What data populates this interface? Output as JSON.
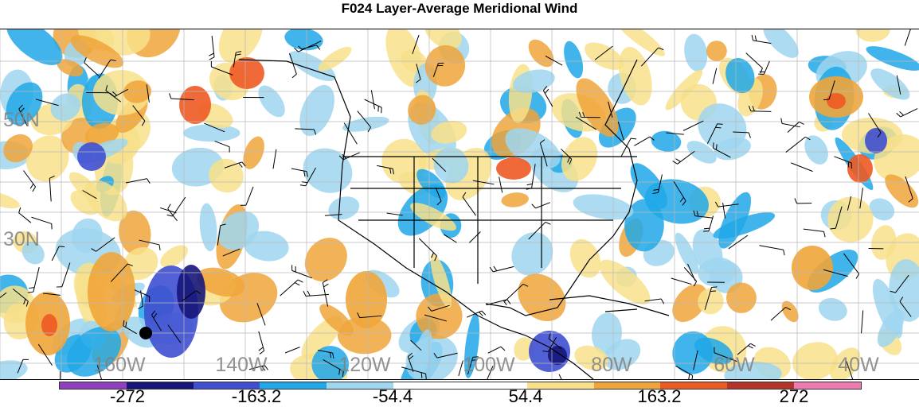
{
  "title": "F024 Layer-Average Meridional Wind",
  "map": {
    "lat_labels": [
      "50N",
      "30N"
    ],
    "lon_labels": [
      "160W",
      "140W",
      "120W",
      "100W",
      "80W",
      "60W",
      "40W"
    ],
    "colors": {
      "background": "#ffffff",
      "coastline": "#000000",
      "grid": "#b0b0b0",
      "label_gray": "#8a8a8a"
    }
  },
  "colorbar": {
    "swatches": [
      "#8f3fbf",
      "#16167a",
      "#3f4fd0",
      "#20a8e8",
      "#9fd6f0",
      "#ffffff",
      "#ffffff",
      "#f8e08a",
      "#f0a53a",
      "#ee5a24",
      "#b4342a",
      "#ee7cb0"
    ],
    "labels": [
      "-272",
      "-163.2",
      "-54.4",
      "54.4",
      "163.2",
      "272"
    ]
  }
}
